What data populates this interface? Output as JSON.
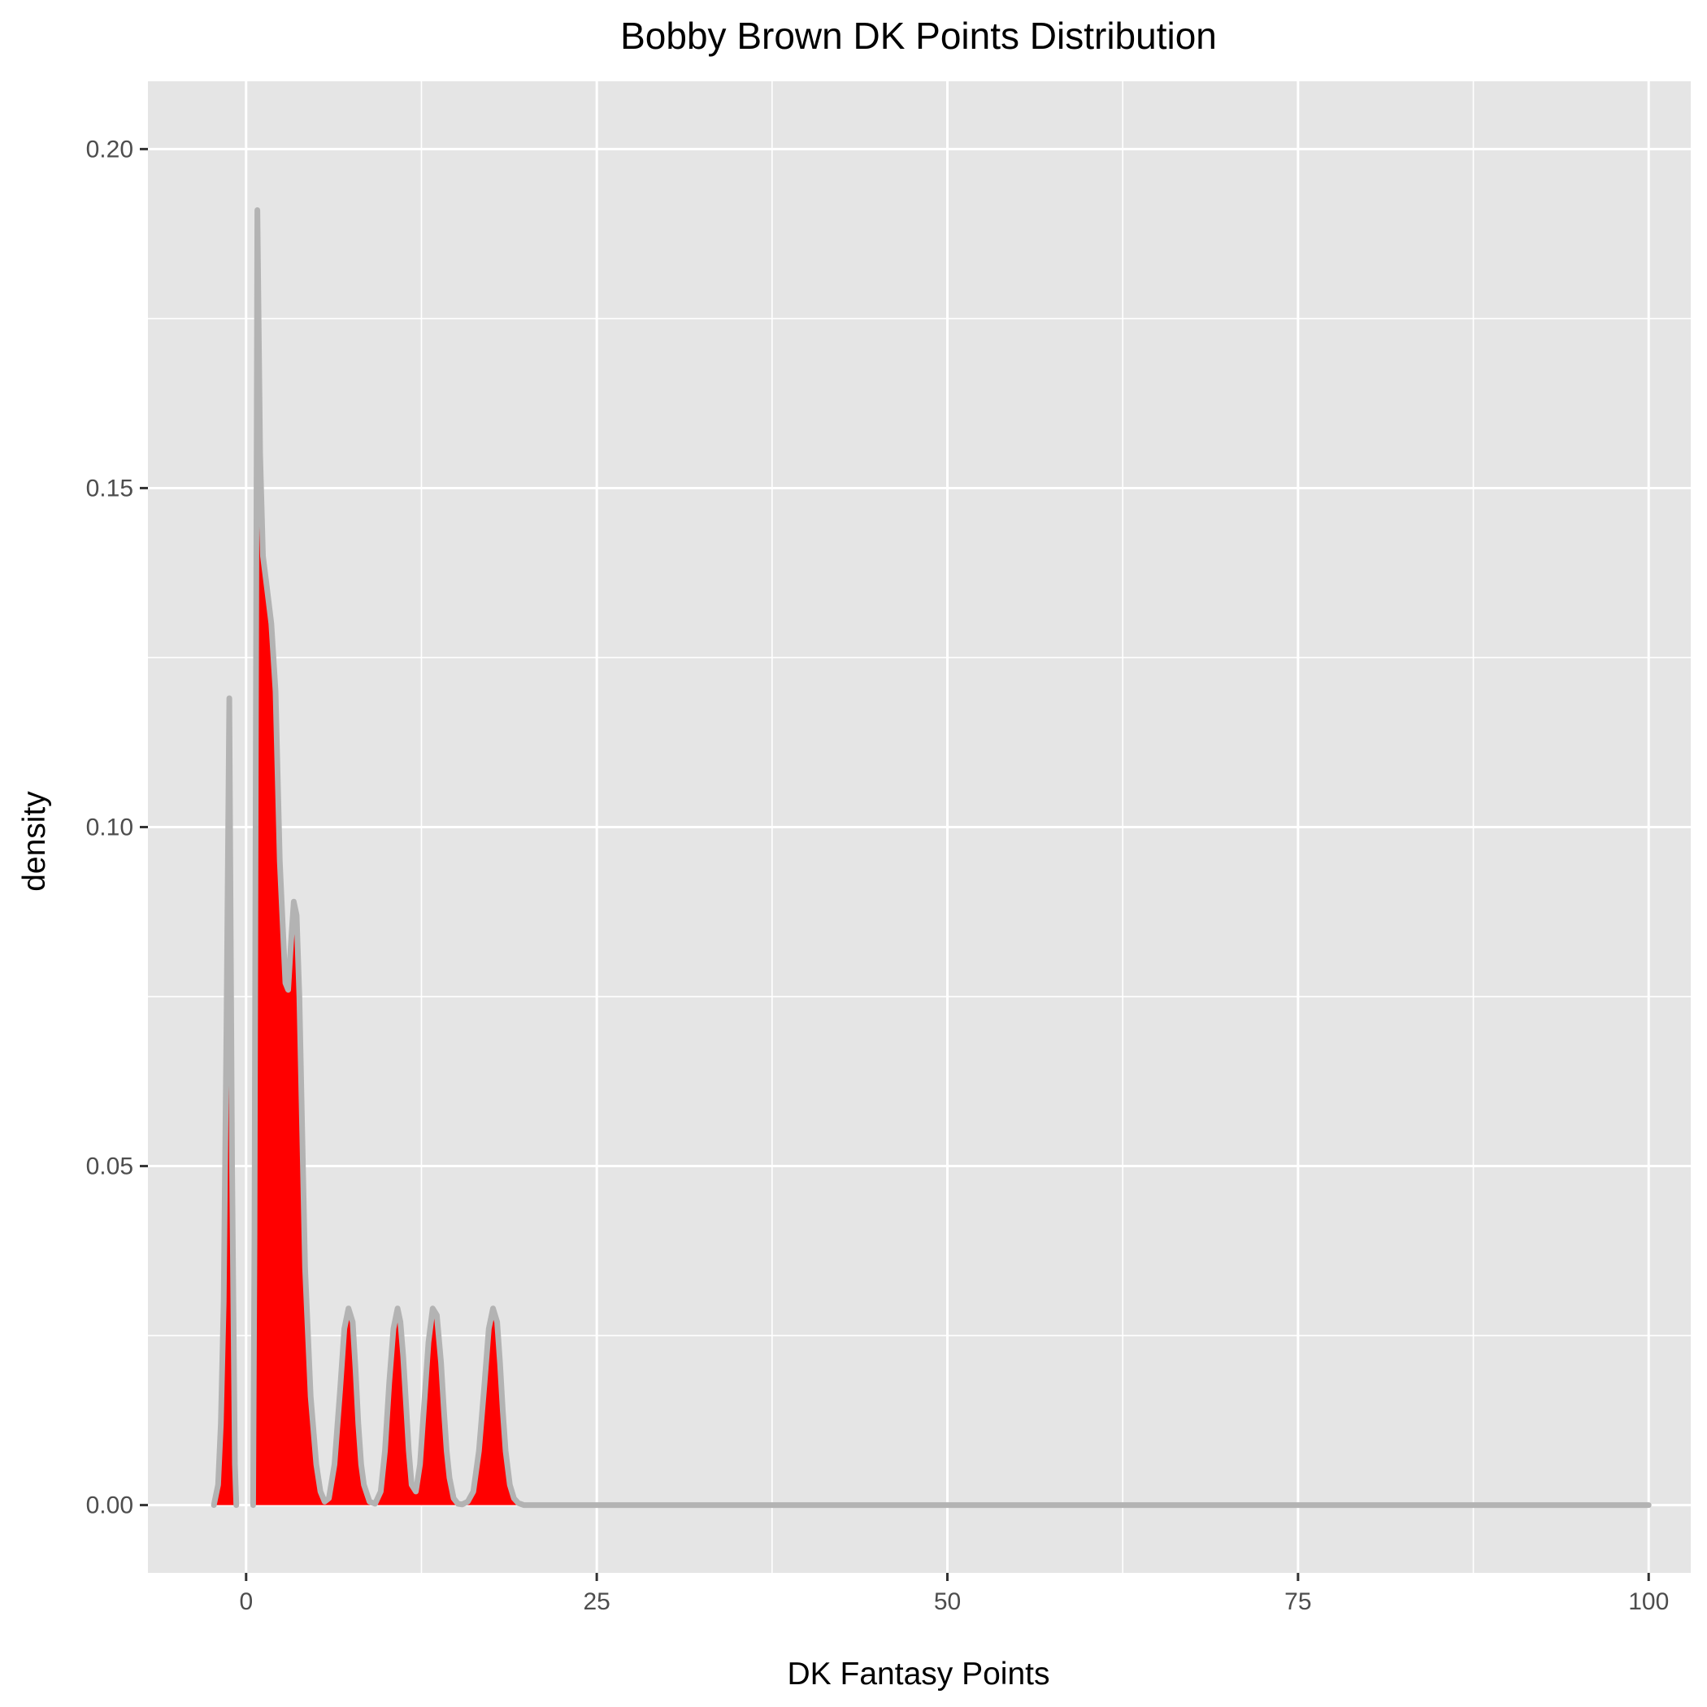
{
  "chart_data": {
    "type": "area",
    "title": "Bobby Brown DK Points Distribution",
    "xlabel": "DK Fantasy Points",
    "ylabel": "density",
    "xlim": [
      -7,
      103
    ],
    "ylim": [
      -0.01,
      0.21
    ],
    "x_ticks": [
      0,
      25,
      50,
      75,
      100
    ],
    "x_tick_labels": [
      "0",
      "25",
      "50",
      "75",
      "100"
    ],
    "y_ticks": [
      0.0,
      0.05,
      0.1,
      0.15,
      0.2
    ],
    "y_tick_labels": [
      "0.00",
      "0.05",
      "0.10",
      "0.15",
      "0.20"
    ],
    "grid": true,
    "legend": "none",
    "colors": {
      "panel_background": "#e5e5e5",
      "grid": "#ffffff",
      "fill": "#ff0000",
      "outline": "#b3b3b3"
    },
    "series": [
      {
        "segments": [
          {
            "x": [
              -2.3,
              -2.0,
              -1.8,
              -1.6,
              -1.4,
              -1.2,
              -1.0,
              -0.8,
              -0.7
            ],
            "y": [
              0.0,
              0.003,
              0.012,
              0.03,
              0.07,
              0.119,
              0.05,
              0.006,
              0.0
            ]
          },
          {
            "x": [
              0.5,
              0.6,
              0.7,
              0.8,
              1.0,
              1.2,
              1.5,
              1.8,
              2.1,
              2.4,
              2.8,
              3.0,
              3.2,
              3.4,
              3.6,
              3.8,
              4.0,
              4.2,
              4.6,
              5.0,
              5.3,
              5.6,
              5.9,
              6.3,
              6.7,
              7.0,
              7.3,
              7.6,
              7.8,
              8.0,
              8.2,
              8.4,
              8.8,
              9.2,
              9.6,
              9.9,
              10.2,
              10.5,
              10.8,
              11.0,
              11.2,
              11.4,
              11.6,
              11.8,
              12.1,
              12.4,
              12.7,
              13.0,
              13.3,
              13.6,
              13.9,
              14.1,
              14.3,
              14.5,
              14.8,
              15.1,
              15.4,
              15.8,
              16.2,
              16.6,
              17.0,
              17.3,
              17.6,
              17.9,
              18.1,
              18.3,
              18.5,
              18.8,
              19.1,
              19.4,
              19.8,
              20.2,
              20.6,
              21.0,
              40.0,
              60.0,
              80.0,
              100.0
            ],
            "y": [
              0.0,
              0.04,
              0.12,
              0.191,
              0.155,
              0.14,
              0.135,
              0.13,
              0.12,
              0.095,
              0.077,
              0.076,
              0.083,
              0.089,
              0.087,
              0.075,
              0.055,
              0.035,
              0.016,
              0.006,
              0.002,
              0.0005,
              0.001,
              0.006,
              0.017,
              0.026,
              0.029,
              0.027,
              0.02,
              0.012,
              0.006,
              0.003,
              0.0005,
              0.0002,
              0.002,
              0.008,
              0.018,
              0.026,
              0.029,
              0.027,
              0.022,
              0.015,
              0.008,
              0.003,
              0.002,
              0.006,
              0.015,
              0.024,
              0.029,
              0.028,
              0.021,
              0.014,
              0.008,
              0.004,
              0.001,
              0.0002,
              0.0001,
              0.0005,
              0.002,
              0.008,
              0.018,
              0.026,
              0.029,
              0.027,
              0.021,
              0.014,
              0.008,
              0.003,
              0.001,
              0.0003,
              0.0,
              0.0,
              0.0,
              0.0,
              0.0,
              0.0,
              0.0,
              0.0
            ]
          }
        ]
      }
    ]
  }
}
